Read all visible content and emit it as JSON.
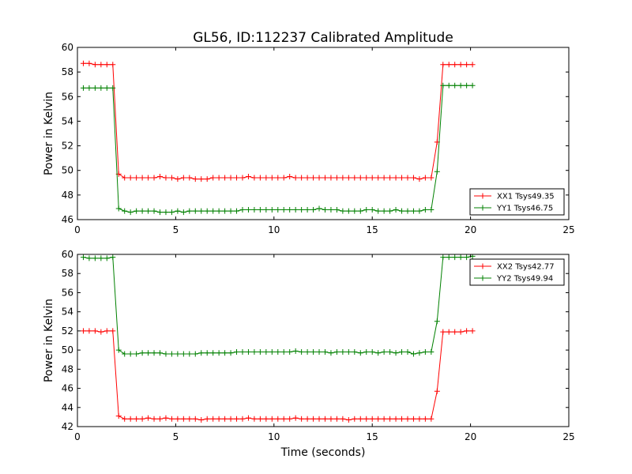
{
  "chart_data": [
    {
      "type": "line",
      "title": "GL56, ID:112237 Calibrated Amplitude",
      "xlabel": "",
      "ylabel": "Power in Kelvin",
      "xlim": [
        0,
        25
      ],
      "ylim": [
        46,
        60
      ],
      "xticks": [
        "0",
        "5",
        "10",
        "15",
        "20",
        "25"
      ],
      "yticks": [
        "46",
        "48",
        "50",
        "52",
        "54",
        "56",
        "58",
        "60"
      ],
      "legend_position": "lower-right",
      "x": [
        0.3,
        0.6,
        0.9,
        1.2,
        1.5,
        1.8,
        2.1,
        2.4,
        2.7,
        3.0,
        3.3,
        3.6,
        3.9,
        4.2,
        4.5,
        4.8,
        5.1,
        5.4,
        5.7,
        6.0,
        6.3,
        6.6,
        6.9,
        7.2,
        7.5,
        7.8,
        8.1,
        8.4,
        8.7,
        9.0,
        9.3,
        9.6,
        9.9,
        10.2,
        10.5,
        10.8,
        11.1,
        11.4,
        11.7,
        12.0,
        12.3,
        12.6,
        12.9,
        13.2,
        13.5,
        13.8,
        14.1,
        14.4,
        14.7,
        15.0,
        15.3,
        15.6,
        15.9,
        16.2,
        16.5,
        16.8,
        17.1,
        17.4,
        17.7,
        18.0,
        18.3,
        18.6,
        18.9,
        19.2,
        19.5,
        19.8,
        20.1
      ],
      "series": [
        {
          "name": "XX1 Tsys49.35",
          "color": "#ff0000",
          "values": [
            58.7,
            58.7,
            58.6,
            58.6,
            58.6,
            58.6,
            49.7,
            49.4,
            49.4,
            49.4,
            49.4,
            49.4,
            49.4,
            49.5,
            49.4,
            49.4,
            49.3,
            49.4,
            49.4,
            49.3,
            49.3,
            49.3,
            49.4,
            49.4,
            49.4,
            49.4,
            49.4,
            49.4,
            49.5,
            49.4,
            49.4,
            49.4,
            49.4,
            49.4,
            49.4,
            49.5,
            49.4,
            49.4,
            49.4,
            49.4,
            49.4,
            49.4,
            49.4,
            49.4,
            49.4,
            49.4,
            49.4,
            49.4,
            49.4,
            49.4,
            49.4,
            49.4,
            49.4,
            49.4,
            49.4,
            49.4,
            49.4,
            49.3,
            49.4,
            49.4,
            52.3,
            58.6,
            58.6,
            58.6,
            58.6,
            58.6,
            58.6
          ]
        },
        {
          "name": "YY1 Tsys46.75",
          "color": "#008000",
          "values": [
            56.7,
            56.7,
            56.7,
            56.7,
            56.7,
            56.7,
            46.9,
            46.7,
            46.6,
            46.7,
            46.7,
            46.7,
            46.7,
            46.6,
            46.6,
            46.6,
            46.7,
            46.6,
            46.7,
            46.7,
            46.7,
            46.7,
            46.7,
            46.7,
            46.7,
            46.7,
            46.7,
            46.8,
            46.8,
            46.8,
            46.8,
            46.8,
            46.8,
            46.8,
            46.8,
            46.8,
            46.8,
            46.8,
            46.8,
            46.8,
            46.9,
            46.8,
            46.8,
            46.8,
            46.7,
            46.7,
            46.7,
            46.7,
            46.8,
            46.8,
            46.7,
            46.7,
            46.7,
            46.8,
            46.7,
            46.7,
            46.7,
            46.7,
            46.8,
            46.8,
            49.9,
            56.9,
            56.9,
            56.9,
            56.9,
            56.9,
            56.9
          ]
        }
      ]
    },
    {
      "type": "line",
      "title": "",
      "xlabel": "Time (seconds)",
      "ylabel": "Power in Kelvin",
      "xlim": [
        0,
        25
      ],
      "ylim": [
        42,
        60
      ],
      "xticks": [
        "0",
        "5",
        "10",
        "15",
        "20",
        "25"
      ],
      "yticks": [
        "42",
        "44",
        "46",
        "48",
        "50",
        "52",
        "54",
        "56",
        "58",
        "60"
      ],
      "legend_position": "upper-right",
      "x": [
        0.3,
        0.6,
        0.9,
        1.2,
        1.5,
        1.8,
        2.1,
        2.4,
        2.7,
        3.0,
        3.3,
        3.6,
        3.9,
        4.2,
        4.5,
        4.8,
        5.1,
        5.4,
        5.7,
        6.0,
        6.3,
        6.6,
        6.9,
        7.2,
        7.5,
        7.8,
        8.1,
        8.4,
        8.7,
        9.0,
        9.3,
        9.6,
        9.9,
        10.2,
        10.5,
        10.8,
        11.1,
        11.4,
        11.7,
        12.0,
        12.3,
        12.6,
        12.9,
        13.2,
        13.5,
        13.8,
        14.1,
        14.4,
        14.7,
        15.0,
        15.3,
        15.6,
        15.9,
        16.2,
        16.5,
        16.8,
        17.1,
        17.4,
        17.7,
        18.0,
        18.3,
        18.6,
        18.9,
        19.2,
        19.5,
        19.8,
        20.1
      ],
      "series": [
        {
          "name": "XX2 Tsys42.77",
          "color": "#ff0000",
          "values": [
            52.0,
            52.0,
            52.0,
            51.9,
            52.0,
            52.0,
            43.1,
            42.8,
            42.8,
            42.8,
            42.8,
            42.9,
            42.8,
            42.8,
            42.9,
            42.8,
            42.8,
            42.8,
            42.8,
            42.8,
            42.7,
            42.8,
            42.8,
            42.8,
            42.8,
            42.8,
            42.8,
            42.8,
            42.9,
            42.8,
            42.8,
            42.8,
            42.8,
            42.8,
            42.8,
            42.8,
            42.9,
            42.8,
            42.8,
            42.8,
            42.8,
            42.8,
            42.8,
            42.8,
            42.8,
            42.7,
            42.8,
            42.8,
            42.8,
            42.8,
            42.8,
            42.8,
            42.8,
            42.8,
            42.8,
            42.8,
            42.8,
            42.8,
            42.8,
            42.8,
            45.7,
            51.9,
            51.9,
            51.9,
            51.9,
            52.0,
            52.0
          ]
        },
        {
          "name": "YY2 Tsys49.94",
          "color": "#008000",
          "values": [
            59.7,
            59.6,
            59.6,
            59.6,
            59.6,
            59.7,
            50.0,
            49.6,
            49.6,
            49.6,
            49.7,
            49.7,
            49.7,
            49.7,
            49.6,
            49.6,
            49.6,
            49.6,
            49.6,
            49.6,
            49.7,
            49.7,
            49.7,
            49.7,
            49.7,
            49.7,
            49.8,
            49.8,
            49.8,
            49.8,
            49.8,
            49.8,
            49.8,
            49.8,
            49.8,
            49.8,
            49.9,
            49.8,
            49.8,
            49.8,
            49.8,
            49.8,
            49.7,
            49.8,
            49.8,
            49.8,
            49.8,
            49.7,
            49.8,
            49.8,
            49.7,
            49.8,
            49.8,
            49.7,
            49.8,
            49.8,
            49.6,
            49.7,
            49.8,
            49.8,
            53.0,
            59.7,
            59.7,
            59.7,
            59.7,
            59.7,
            59.8
          ]
        }
      ]
    }
  ]
}
